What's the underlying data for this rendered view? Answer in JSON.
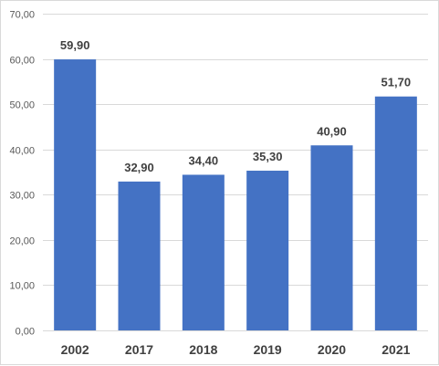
{
  "chart_data": {
    "type": "bar",
    "categories": [
      "2002",
      "2017",
      "2018",
      "2019",
      "2020",
      "2021"
    ],
    "values": [
      59.9,
      32.9,
      34.4,
      35.3,
      40.9,
      51.7
    ],
    "value_labels": [
      "59,90",
      "32,90",
      "34,40",
      "35,30",
      "40,90",
      "51,70"
    ],
    "ylim": [
      0,
      70
    ],
    "y_ticks": [
      0,
      10,
      20,
      30,
      40,
      50,
      60,
      70
    ],
    "y_tick_labels": [
      "0,00",
      "10,00",
      "20,00",
      "30,00",
      "40,00",
      "50,00",
      "60,00",
      "70,00"
    ],
    "grid": true,
    "legend": "none",
    "colors": {
      "bar": "#4472c4",
      "grid": "#d9d9d9",
      "label": "#404040",
      "axis_text": "#595959"
    }
  }
}
